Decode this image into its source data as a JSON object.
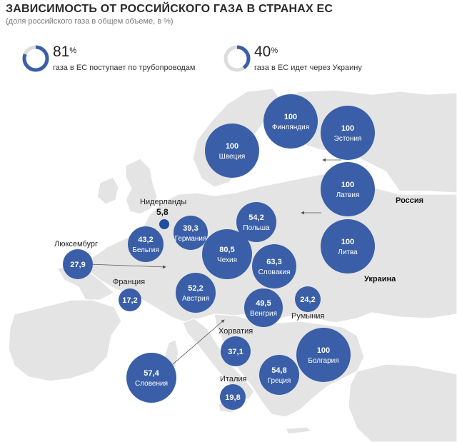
{
  "header": {
    "title": "ЗАВИСИМОСТЬ ОТ РОССИЙСКОГО ГАЗА В СТРАНАХ ЕС",
    "subtitle": "(доля российского газа в общем объеме, в %)"
  },
  "stats": [
    {
      "value": "81",
      "unit": "%",
      "fraction": 0.81,
      "text": "газа в ЕС поступает по трубопроводам"
    },
    {
      "value": "40",
      "unit": "%",
      "fraction": 0.4,
      "text": "газа в ЕС идет через Украину"
    }
  ],
  "colors": {
    "accent": "#3a5fa8",
    "accent_dark": "#1f4e9e",
    "ring_track": "#dcdcdc",
    "land": "#e6e6e6",
    "sea": "#ffffff"
  },
  "regions": [
    {
      "id": "russia",
      "name": "Россия"
    },
    {
      "id": "ukraine",
      "name": "Украина"
    }
  ],
  "countries": [
    {
      "id": "finland",
      "name": "Финляндия",
      "value": "100"
    },
    {
      "id": "estonia",
      "name": "Эстония",
      "value": "100"
    },
    {
      "id": "sweden",
      "name": "Швеция",
      "value": "100"
    },
    {
      "id": "latvia",
      "name": "Латвия",
      "value": "100"
    },
    {
      "id": "lithuania",
      "name": "Литва",
      "value": "100"
    },
    {
      "id": "poland",
      "name": "Польша",
      "value": "54,2"
    },
    {
      "id": "germany",
      "name": "Германия",
      "value": "39,3"
    },
    {
      "id": "netherlands",
      "name": "Нидерланды",
      "value": "5,8"
    },
    {
      "id": "belgium",
      "name": "Бельгия",
      "value": "43,2"
    },
    {
      "id": "luxembourg",
      "name": "Люксембург",
      "value": "27,9"
    },
    {
      "id": "czech",
      "name": "Чехия",
      "value": "80,5"
    },
    {
      "id": "slovakia",
      "name": "Словакия",
      "value": "63,3"
    },
    {
      "id": "france",
      "name": "Франция",
      "value": "17,2"
    },
    {
      "id": "austria",
      "name": "Австрия",
      "value": "52,2"
    },
    {
      "id": "hungary",
      "name": "Венгрия",
      "value": "49,5"
    },
    {
      "id": "romania",
      "name": "Румыния",
      "value": "24,2"
    },
    {
      "id": "croatia",
      "name": "Хорватия",
      "value": "37,1"
    },
    {
      "id": "bulgaria",
      "name": "Болгария",
      "value": "100"
    },
    {
      "id": "slovenia",
      "name": "Словения",
      "value": "57,4"
    },
    {
      "id": "greece",
      "name": "Греция",
      "value": "54,8"
    },
    {
      "id": "italy",
      "name": "Италия",
      "value": "19,8"
    }
  ]
}
